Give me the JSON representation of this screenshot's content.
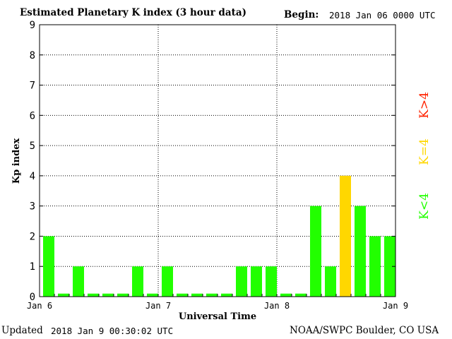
{
  "header": {
    "title": "Estimated Planetary K index (3 hour data)",
    "begin_label": "Begin:",
    "begin_value": "2018 Jan 06 0000 UTC"
  },
  "footer": {
    "updated_label": "Updated",
    "updated_value": "2018 Jan  9 00:30:02 UTC",
    "source": "NOAA/SWPC Boulder, CO USA"
  },
  "chart_data": {
    "type": "bar",
    "xlabel": "Universal Time",
    "ylabel": "Kp index",
    "ylim": [
      0,
      9
    ],
    "yticks": [
      0,
      1,
      2,
      3,
      4,
      5,
      6,
      7,
      8,
      9
    ],
    "xtick_labels": [
      "Jan 6",
      "Jan 7",
      "Jan 8",
      "Jan 9"
    ],
    "grid": true,
    "values": [
      2,
      0.1,
      1,
      0.1,
      0.1,
      0.1,
      1,
      0.1,
      1,
      0.1,
      0.1,
      0.1,
      0.1,
      1,
      1,
      1,
      0.1,
      0.1,
      3,
      1,
      4,
      3,
      2,
      2
    ],
    "legend": [
      {
        "label": "K<4",
        "color": "#22ff00"
      },
      {
        "label": "K=4",
        "color": "#ffd700"
      },
      {
        "label": "K>4",
        "color": "#ff2200"
      }
    ]
  }
}
